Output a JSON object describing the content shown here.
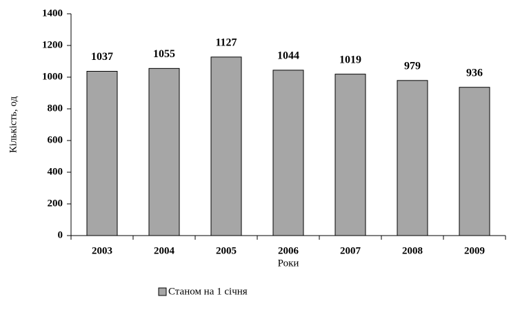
{
  "chart_data": {
    "type": "bar",
    "categories": [
      "2003",
      "2004",
      "2005",
      "2006",
      "2007",
      "2008",
      "2009"
    ],
    "series": [
      {
        "name": "Станом на 1 січня",
        "color": "#a6a6a6",
        "values": [
          1037,
          1055,
          1127,
          1044,
          1019,
          979,
          936
        ]
      }
    ],
    "xlabel": "Роки",
    "ylabel": "Кількість, од",
    "ylim": [
      0,
      1400
    ],
    "yticks": [
      0,
      200,
      400,
      600,
      800,
      1000,
      1200,
      1400
    ],
    "grid": false,
    "legend": "bottom"
  }
}
